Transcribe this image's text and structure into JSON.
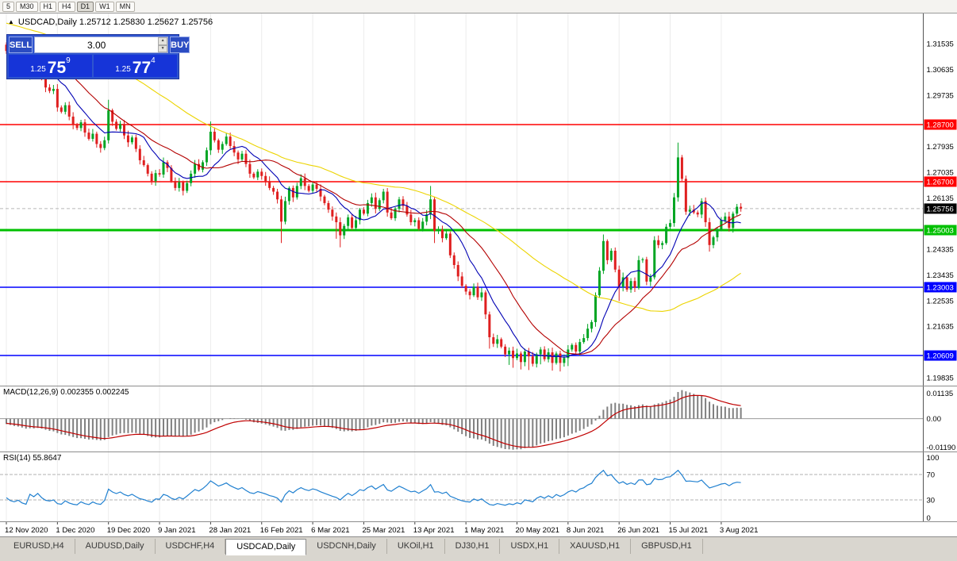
{
  "toolbar": {
    "timeframes": [
      "5",
      "M30",
      "H1",
      "H4",
      "D1",
      "W1",
      "MN"
    ],
    "active": "D1"
  },
  "header": {
    "text": "USDCAD,Daily 1.25712 1.25830 1.25627 1.25756"
  },
  "icons": {
    "collapse": "▲",
    "spin_up": "▲",
    "spin_down": "▼"
  },
  "one_click": {
    "sell_label": "SELL",
    "buy_label": "BUY",
    "volume": "3.00",
    "sell_price_base": "1.25",
    "sell_price_big": "75",
    "sell_price_sup": "9",
    "buy_price_base": "1.25",
    "buy_price_big": "77",
    "buy_price_sup": "4"
  },
  "tabs": {
    "items": [
      "EURUSD,H4",
      "AUDUSD,Daily",
      "USDCHF,H4",
      "USDCAD,Daily",
      "USDCNH,Daily",
      "UKOil,H1",
      "DJ30,H1",
      "USDX,H1",
      "XAUUSD,H1",
      "GBPUSD,H1"
    ],
    "active_index": 3
  },
  "chart_data": {
    "type": "candlestick",
    "symbol": "USDCAD",
    "timeframe": "Daily",
    "ohlc_display": {
      "open": "1.25712",
      "high": "1.25830",
      "low": "1.25627",
      "close": "1.25756"
    },
    "warmup": {
      "count": 60,
      "from": 1.331,
      "to": 1.316
    },
    "closes": [
      1.3128,
      1.31,
      1.3085,
      1.3092,
      1.306,
      1.3042,
      1.3095,
      1.3068,
      1.309,
      1.3038,
      1.3,
      1.2988,
      1.2995,
      1.293,
      1.2915,
      1.2938,
      1.2898,
      1.287,
      1.2858,
      1.2878,
      1.2842,
      1.282,
      1.2838,
      1.2802,
      1.2788,
      1.2815,
      1.292,
      1.288,
      1.2855,
      1.2872,
      1.2832,
      1.2808,
      1.2825,
      1.2785,
      1.2745,
      1.2728,
      1.2698,
      1.2672,
      1.27,
      1.2695,
      1.2738,
      1.2718,
      1.2672,
      1.2648,
      1.2668,
      1.2638,
      1.2665,
      1.2698,
      1.2732,
      1.2712,
      1.2738,
      1.278,
      1.2845,
      1.2815,
      1.2782,
      1.2802,
      1.2828,
      1.2795,
      1.2772,
      1.2748,
      1.2768,
      1.2732,
      1.2698,
      1.2685,
      1.2705,
      1.269,
      1.2672,
      1.2648,
      1.2635,
      1.2608,
      1.253,
      1.2602,
      1.2648,
      1.2615,
      1.2655,
      1.2682,
      1.2655,
      1.2638,
      1.266,
      1.2645,
      1.2618,
      1.2595,
      1.2572,
      1.2548,
      1.2528,
      1.2482,
      1.2515,
      1.2545,
      1.2508,
      1.2535,
      1.2572,
      1.2558,
      1.2595,
      1.2615,
      1.2575,
      1.2605,
      1.2635,
      1.2562,
      1.2542,
      1.2575,
      1.2608,
      1.2585,
      1.2555,
      1.2528,
      1.2535,
      1.2505,
      1.253,
      1.2555,
      1.2608,
      1.2498,
      1.2502,
      1.2472,
      1.2488,
      1.2412,
      1.2378,
      1.2338,
      1.2305,
      1.2285,
      1.2272,
      1.2302,
      1.2265,
      1.2282,
      1.2205,
      1.2125,
      1.2102,
      1.2118,
      1.2092,
      1.2065,
      1.2078,
      1.2052,
      1.2068,
      1.2038,
      1.2075,
      1.2058,
      1.2032,
      1.2065,
      1.2082,
      1.2048,
      1.2072,
      1.2035,
      1.2068,
      1.2035,
      1.2052,
      1.2082,
      1.2098,
      1.2075,
      1.2108,
      1.2122,
      1.2155,
      1.2178,
      1.2272,
      1.2358,
      1.2462,
      1.2395,
      1.2428,
      1.2362,
      1.2302,
      1.2335,
      1.2292,
      1.2322,
      1.2298,
      1.2395,
      1.2398,
      1.232,
      1.2335,
      1.2465,
      1.2448,
      1.2455,
      1.2512,
      1.2525,
      1.2615,
      1.2755,
      1.268,
      1.2565,
      1.2572,
      1.2562,
      1.2555,
      1.2602,
      1.2528,
      1.2448,
      1.2475,
      1.2502,
      1.2535,
      1.2548,
      1.2508,
      1.2558,
      1.2582,
      1.2576
    ],
    "specials": {
      "0": {
        "o": 1.315,
        "h": 1.3158,
        "l": 1.3118
      },
      "26": {
        "h": 1.2957
      },
      "52": {
        "h": 1.2881
      },
      "70": {
        "l": 1.2455
      },
      "84": {
        "l": 1.247
      },
      "85": {
        "l": 1.244
      },
      "108": {
        "h": 1.2655
      },
      "109": {
        "l": 1.2455
      },
      "123": {
        "l": 1.2085
      },
      "128": {
        "l": 1.2028
      },
      "129": {
        "l": 1.2018
      },
      "131": {
        "l": 1.2012
      },
      "133": {
        "l": 1.201
      },
      "136": {
        "l": 1.203
      },
      "139": {
        "l": 1.2008
      },
      "141": {
        "l": 1.2005
      },
      "143": {
        "l": 1.2024
      },
      "152": {
        "h": 1.2485
      },
      "156": {
        "l": 1.2252
      },
      "171": {
        "h": 1.2807,
        "l": 1.26
      },
      "179": {
        "l": 1.2425
      }
    },
    "colors": {
      "up": "#00a523",
      "down": "#df1f1f",
      "grid": "#ececec",
      "axis_text": "#000000"
    },
    "x_ticks": [
      {
        "i": 0,
        "label": "12 Nov 2020"
      },
      {
        "i": 13,
        "label": "1 Dec 2020"
      },
      {
        "i": 26,
        "label": "19 Dec 2020"
      },
      {
        "i": 39,
        "label": "9 Jan 2021"
      },
      {
        "i": 52,
        "label": "28 Jan 2021"
      },
      {
        "i": 65,
        "label": "16 Feb 2021"
      },
      {
        "i": 78,
        "label": "6 Mar 2021"
      },
      {
        "i": 91,
        "label": "25 Mar 2021"
      },
      {
        "i": 104,
        "label": "13 Apr 2021"
      },
      {
        "i": 117,
        "label": "1 May 2021"
      },
      {
        "i": 130,
        "label": "20 May 2021"
      },
      {
        "i": 143,
        "label": "8 Jun 2021"
      },
      {
        "i": 156,
        "label": "26 Jun 2021"
      },
      {
        "i": 169,
        "label": "15 Jul 2021"
      },
      {
        "i": 182,
        "label": "3 Aug 2021"
      }
    ],
    "y_axis_ticks": [
      1.31535,
      1.30635,
      1.29735,
      1.27935,
      1.27035,
      1.26135,
      1.24335,
      1.23435,
      1.22535,
      1.21635,
      1.19835
    ],
    "levels": [
      {
        "price": 1.287,
        "label": "1.28700",
        "color": "#ff0000",
        "width": 1.5
      },
      {
        "price": 1.267,
        "label": "1.26700",
        "color": "#ff0000",
        "width": 1.5
      },
      {
        "price": 1.25003,
        "label": "1.25003",
        "color": "#00c000",
        "width": 3
      },
      {
        "price": 1.23003,
        "label": "1.23003",
        "color": "#0000ff",
        "width": 1.5
      },
      {
        "price": 1.20609,
        "label": "1.20609",
        "color": "#0000ff",
        "width": 1.5
      }
    ],
    "current_price": {
      "price": 1.25756,
      "label": "1.25756",
      "color": "#000000"
    },
    "moving_averages": [
      {
        "period": 55,
        "color": "#ecd400"
      },
      {
        "period": 10,
        "color": "#0000b4"
      },
      {
        "period": 21,
        "color": "#b40000"
      }
    ],
    "macd": {
      "title_text": "MACD(12,26,9) 0.002355 0.002245",
      "fast": 12,
      "slow": 26,
      "signal": 9,
      "scale_max": 0.01135,
      "scale_min": -0.0119,
      "labels": [
        "0.01135",
        "0.00",
        "-0.01190"
      ],
      "histogram_color": "#808080",
      "signal_color": "#c00000"
    },
    "rsi": {
      "title_text": "RSI(14) 55.8647",
      "period": 14,
      "levels": [
        70,
        30
      ],
      "labels": [
        "100",
        "70",
        "30",
        "0"
      ],
      "line_color": "#2080d0"
    }
  }
}
